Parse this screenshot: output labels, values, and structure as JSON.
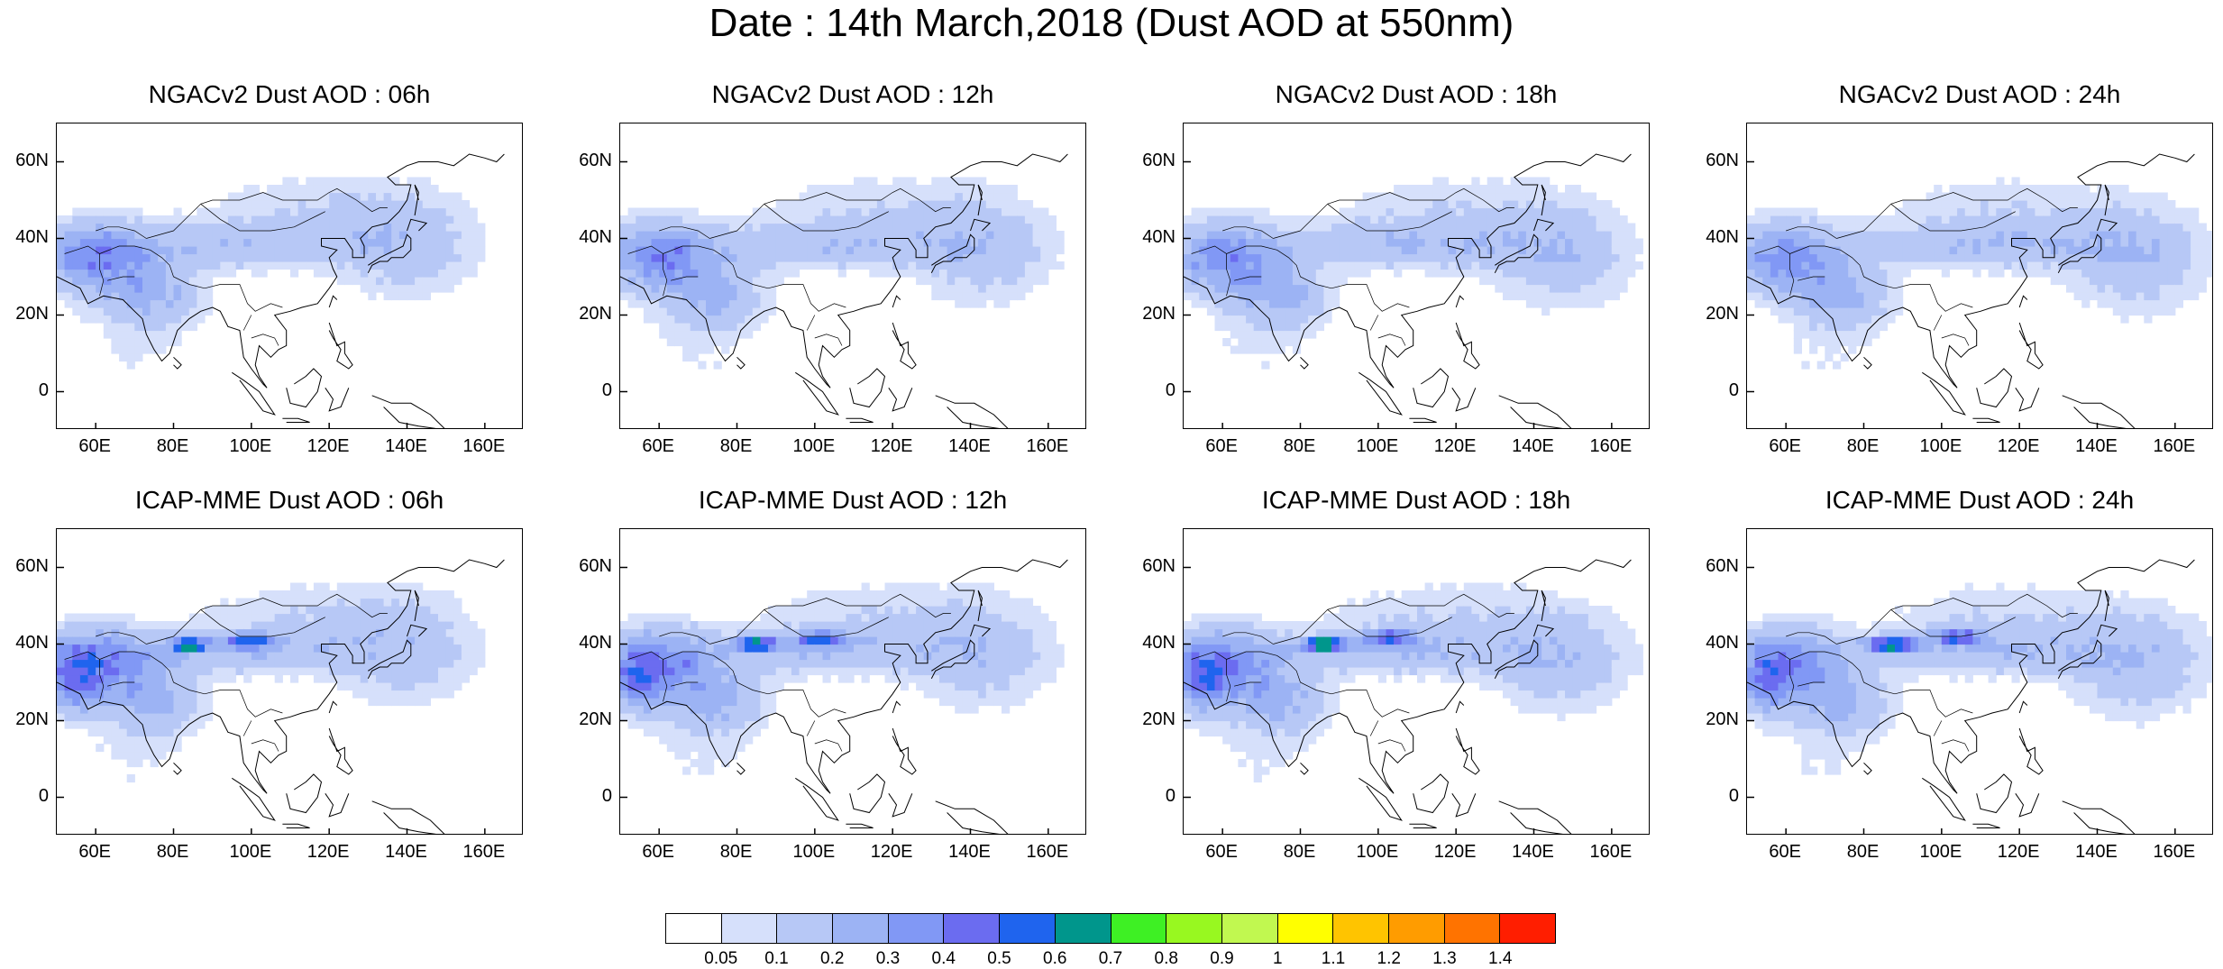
{
  "title": "Date : 14th March,2018 (Dust AOD at 550nm)",
  "panels": [
    {
      "title": "NGACv2 Dust AOD : 06h",
      "model": "NGAC",
      "hour": 6
    },
    {
      "title": "NGACv2 Dust AOD : 12h",
      "model": "NGAC",
      "hour": 12
    },
    {
      "title": "NGACv2 Dust AOD : 18h",
      "model": "NGAC",
      "hour": 18
    },
    {
      "title": "NGACv2 Dust AOD : 24h",
      "model": "NGAC",
      "hour": 24
    },
    {
      "title": "ICAP-MME Dust AOD : 06h",
      "model": "ICAP",
      "hour": 6
    },
    {
      "title": "ICAP-MME Dust AOD : 12h",
      "model": "ICAP",
      "hour": 12
    },
    {
      "title": "ICAP-MME Dust AOD : 18h",
      "model": "ICAP",
      "hour": 18
    },
    {
      "title": "ICAP-MME Dust AOD : 24h",
      "model": "ICAP",
      "hour": 24
    }
  ],
  "map": {
    "lon_range": [
      50,
      170
    ],
    "lat_range": [
      -10,
      70
    ],
    "lat_ticks": [
      {
        "value": 60,
        "label": "60N"
      },
      {
        "value": 40,
        "label": "40N"
      },
      {
        "value": 20,
        "label": "20N"
      },
      {
        "value": 0,
        "label": "0"
      }
    ],
    "lon_ticks": [
      {
        "value": 60,
        "label": "60E"
      },
      {
        "value": 80,
        "label": "80E"
      },
      {
        "value": 100,
        "label": "100E"
      },
      {
        "value": 120,
        "label": "120E"
      },
      {
        "value": 140,
        "label": "140E"
      },
      {
        "value": 160,
        "label": "160E"
      }
    ]
  },
  "colorbar": {
    "colors": [
      "#ffffff",
      "#d6e0fb",
      "#b7c8f6",
      "#9cb3f4",
      "#8198f5",
      "#6b6cf0",
      "#1f64ee",
      "#00968c",
      "#3ef024",
      "#98f820",
      "#c1f850",
      "#ffff00",
      "#ffc400",
      "#ff9c00",
      "#ff7300",
      "#ff1e00"
    ],
    "labels": [
      "0.05",
      "0.1",
      "0.2",
      "0.3",
      "0.4",
      "0.5",
      "0.6",
      "0.7",
      "0.8",
      "0.9",
      "1",
      "1.1",
      "1.2",
      "1.3",
      "1.4"
    ]
  }
}
